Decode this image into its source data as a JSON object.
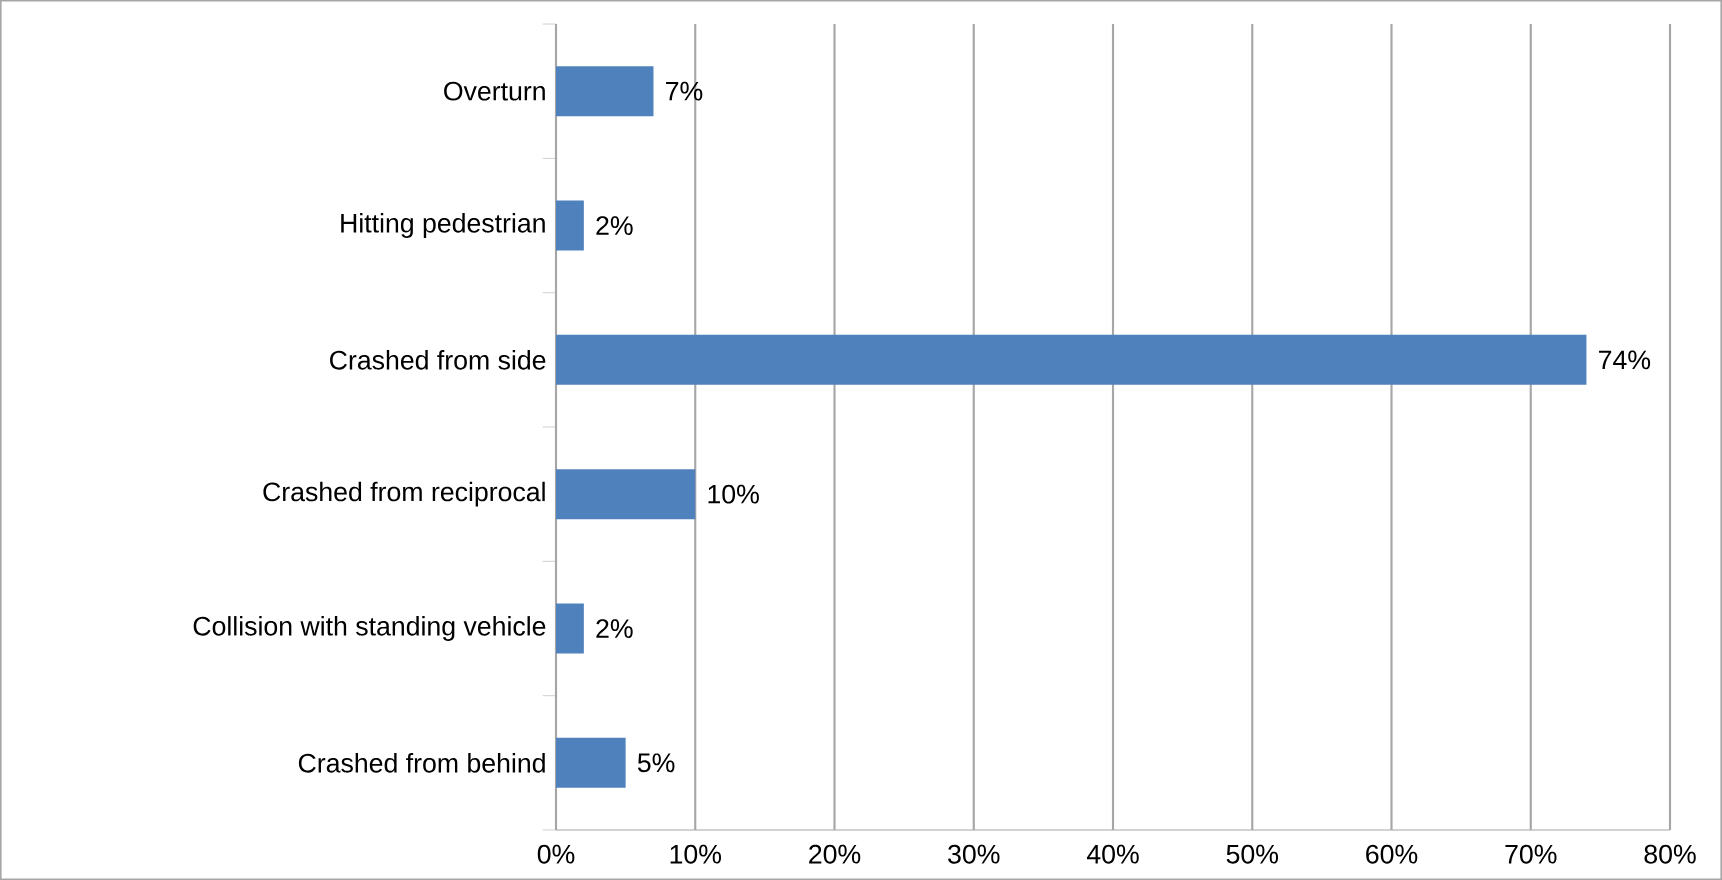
{
  "chart_data": {
    "type": "bar",
    "orientation": "horizontal",
    "categories": [
      "Overturn",
      "Hitting pedestrian",
      "Crashed from side",
      "Crashed from reciprocal",
      "Collision with standing vehicle",
      "Crashed from behind"
    ],
    "values": [
      7,
      2,
      74,
      10,
      2,
      5
    ],
    "value_labels": [
      "7%",
      "2%",
      "74%",
      "10%",
      "2%",
      "5%"
    ],
    "color": "#4f81bd",
    "xlim": [
      0,
      80
    ],
    "xticks": [
      {
        "value": 0,
        "label": "0%"
      },
      {
        "value": 10,
        "label": "10%"
      },
      {
        "value": 20,
        "label": "20%"
      },
      {
        "value": 30,
        "label": "30%"
      },
      {
        "value": 40,
        "label": "40%"
      },
      {
        "value": 50,
        "label": "50%"
      },
      {
        "value": 60,
        "label": "60%"
      },
      {
        "value": 70,
        "label": "70%"
      },
      {
        "value": 80,
        "label": "80%"
      }
    ],
    "grid": "x"
  }
}
